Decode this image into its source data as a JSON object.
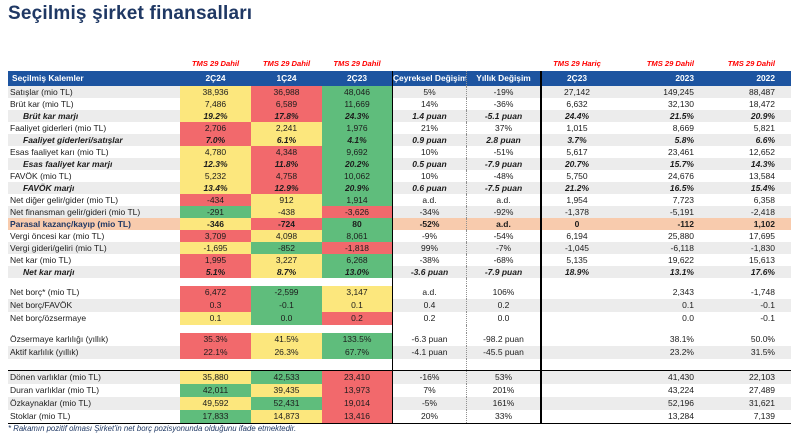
{
  "title": "Seçilmiş şirket finansalları",
  "footnote": "* Rakamın pozitif olması Şirket'in net borç pozisyonunda olduğunu ifade etmektedir.",
  "colors": {
    "header_blue": "#1D54A0",
    "title_navy": "#1F3864",
    "cell_red": "#F2696C",
    "cell_yellow": "#FCE77D",
    "cell_green": "#5FBD7C",
    "row_orange": "#F8CBAD",
    "stripe_gray": "#ECECEC",
    "tms_red": "#FF0000"
  },
  "table": {
    "tms_labels": {
      "c1": "TMS 29 Dahil",
      "c2": "TMS 29 Dahil",
      "c3": "TMS 29 Dahil",
      "h": "TMS 29 Hariç",
      "a": "TMS 29 Dahil",
      "b": "TMS 29 Dahil"
    },
    "headers": {
      "label": "Seçilmiş Kalemler",
      "c1": "2Ç24",
      "c2": "1Ç24",
      "c3": "2Ç23",
      "q": "Çeyreksel Değişim",
      "y": "Yıllık Değişim",
      "h": "2Ç23",
      "a": "2023",
      "b": "2022"
    },
    "rows": [
      {
        "t": "r",
        "label": "Satışlar (mio TL)",
        "style": "normal",
        "stripe": "g",
        "c": [
          [
            "38,936",
            "y"
          ],
          [
            "36,988",
            "r"
          ],
          [
            "48,046",
            "g"
          ]
        ],
        "q": "5%",
        "y": "-19%",
        "h": "27,142",
        "a": "149,245",
        "b": "88,487"
      },
      {
        "t": "r",
        "label": "Brüt kar (mio TL)",
        "style": "normal",
        "stripe": "w",
        "c": [
          [
            "7,486",
            "y"
          ],
          [
            "6,589",
            "r"
          ],
          [
            "11,669",
            "g"
          ]
        ],
        "q": "14%",
        "y": "-36%",
        "h": "6,632",
        "a": "32,130",
        "b": "18,472"
      },
      {
        "t": "r",
        "label": "Brüt kar marjı",
        "style": "margin",
        "stripe": "g",
        "c": [
          [
            "19.2%",
            "y"
          ],
          [
            "17.8%",
            "r"
          ],
          [
            "24.3%",
            "g"
          ]
        ],
        "q": "1.4 puan",
        "y": "-5.1 puan",
        "h": "24.4%",
        "a": "21.5%",
        "b": "20.9%"
      },
      {
        "t": "r",
        "label": "Faaliyet giderleri (mio TL)",
        "style": "normal",
        "stripe": "w",
        "c": [
          [
            "2,706",
            "r"
          ],
          [
            "2,241",
            "y"
          ],
          [
            "1,976",
            "g"
          ]
        ],
        "q": "21%",
        "y": "37%",
        "h": "1,015",
        "a": "8,669",
        "b": "5,821"
      },
      {
        "t": "r",
        "label": "Faaliyet giderleri/satışlar",
        "style": "margin",
        "stripe": "g",
        "c": [
          [
            "7.0%",
            "r"
          ],
          [
            "6.1%",
            "y"
          ],
          [
            "4.1%",
            "g"
          ]
        ],
        "q": "0.9 puan",
        "y": "2.8 puan",
        "h": "3.7%",
        "a": "5.8%",
        "b": "6.6%"
      },
      {
        "t": "r",
        "label": "Esas faaliyet karı (mio TL)",
        "style": "normal",
        "stripe": "w",
        "c": [
          [
            "4,780",
            "y"
          ],
          [
            "4,348",
            "r"
          ],
          [
            "9,692",
            "g"
          ]
        ],
        "q": "10%",
        "y": "-51%",
        "h": "5,617",
        "a": "23,461",
        "b": "12,652"
      },
      {
        "t": "r",
        "label": "Esas faaliyet kar marjı",
        "style": "margin",
        "stripe": "g",
        "c": [
          [
            "12.3%",
            "y"
          ],
          [
            "11.8%",
            "r"
          ],
          [
            "20.2%",
            "g"
          ]
        ],
        "q": "0.5 puan",
        "y": "-7.9 puan",
        "h": "20.7%",
        "a": "15.7%",
        "b": "14.3%"
      },
      {
        "t": "r",
        "label": "FAVÖK (mio TL)",
        "style": "normal",
        "stripe": "w",
        "c": [
          [
            "5,232",
            "y"
          ],
          [
            "4,758",
            "r"
          ],
          [
            "10,062",
            "g"
          ]
        ],
        "q": "10%",
        "y": "-48%",
        "h": "5,750",
        "a": "24,676",
        "b": "13,584"
      },
      {
        "t": "r",
        "label": "FAVÖK marjı",
        "style": "margin",
        "stripe": "g",
        "c": [
          [
            "13.4%",
            "y"
          ],
          [
            "12.9%",
            "r"
          ],
          [
            "20.9%",
            "g"
          ]
        ],
        "q": "0.6 puan",
        "y": "-7.5 puan",
        "h": "21.2%",
        "a": "16.5%",
        "b": "15.4%"
      },
      {
        "t": "r",
        "label": "Net diğer gelir/gider (mio TL)",
        "style": "normal",
        "stripe": "w",
        "c": [
          [
            "-434",
            "r"
          ],
          [
            "912",
            "y"
          ],
          [
            "1,914",
            "g"
          ]
        ],
        "q": "a.d.",
        "y": "a.d.",
        "h": "1,954",
        "a": "7,723",
        "b": "6,358"
      },
      {
        "t": "r",
        "label": "Net finansman gelir/gideri (mio TL)",
        "style": "normal",
        "stripe": "g",
        "c": [
          [
            "-291",
            "g"
          ],
          [
            "-438",
            "y"
          ],
          [
            "-3,626",
            "r"
          ]
        ],
        "q": "-34%",
        "y": "-92%",
        "h": "-1,378",
        "a": "-5,191",
        "b": "-2,418"
      },
      {
        "t": "r",
        "label": "Parasal kazanç/kayıp (mio TL)",
        "style": "bold",
        "stripe": "o",
        "c": [
          [
            "-346",
            "y"
          ],
          [
            "-724",
            "r"
          ],
          [
            "80",
            "g"
          ]
        ],
        "q": "-52%",
        "y": "a.d.",
        "h": "0",
        "a": "-112",
        "b": "1,102"
      },
      {
        "t": "r",
        "label": "Vergi öncesi kar (mio TL)",
        "style": "normal",
        "stripe": "w",
        "c": [
          [
            "3,709",
            "r"
          ],
          [
            "4,098",
            "y"
          ],
          [
            "8,061",
            "g"
          ]
        ],
        "q": "-9%",
        "y": "-54%",
        "h": "6,194",
        "a": "25,880",
        "b": "17,695"
      },
      {
        "t": "r",
        "label": "Vergi gideri/geliri (mio TL)",
        "style": "normal",
        "stripe": "g",
        "c": [
          [
            "-1,695",
            "y"
          ],
          [
            "-852",
            "g"
          ],
          [
            "-1,818",
            "r"
          ]
        ],
        "q": "99%",
        "y": "-7%",
        "h": "-1,045",
        "a": "-6,118",
        "b": "-1,830"
      },
      {
        "t": "r",
        "label": "Net kar (mio TL)",
        "style": "normal",
        "stripe": "w",
        "c": [
          [
            "1,995",
            "r"
          ],
          [
            "3,227",
            "y"
          ],
          [
            "6,268",
            "g"
          ]
        ],
        "q": "-38%",
        "y": "-68%",
        "h": "5,135",
        "a": "19,622",
        "b": "15,613"
      },
      {
        "t": "r",
        "label": "Net kar marjı",
        "style": "margin",
        "stripe": "g",
        "c": [
          [
            "5.1%",
            "r"
          ],
          [
            "8.7%",
            "y"
          ],
          [
            "13.0%",
            "g"
          ]
        ],
        "q": "-3.6 puan",
        "y": "-7.9 puan",
        "h": "18.9%",
        "a": "13.1%",
        "b": "17.6%"
      },
      {
        "t": "s"
      },
      {
        "t": "r",
        "tall": true,
        "label": "Net borç* (mio TL)",
        "style": "normal",
        "stripe": "w",
        "c": [
          [
            "6,472",
            "r"
          ],
          [
            "-2,599",
            "g"
          ],
          [
            "3,147",
            "y"
          ]
        ],
        "q": "a.d.",
        "y": "106%",
        "h": "",
        "a": "2,343",
        "b": "-1,748"
      },
      {
        "t": "r",
        "tall": true,
        "label": "Net borç/FAVÖK",
        "style": "normal",
        "stripe": "g",
        "c": [
          [
            "0.3",
            "r"
          ],
          [
            "-0.1",
            "g"
          ],
          [
            "0.1",
            "y"
          ]
        ],
        "q": "0.4",
        "y": "0.2",
        "h": "",
        "a": "0.1",
        "b": "-0.1"
      },
      {
        "t": "r",
        "tall": true,
        "label": "Net borç/özsermaye",
        "style": "normal",
        "stripe": "w",
        "c": [
          [
            "0.1",
            "y"
          ],
          [
            "0.0",
            "g"
          ],
          [
            "0.2",
            "r"
          ]
        ],
        "q": "0.2",
        "y": "0.0",
        "h": "",
        "a": "0.0",
        "b": "-0.1"
      },
      {
        "t": "s"
      },
      {
        "t": "r",
        "tall": true,
        "label": "Özsermaye karlılığı (yıllık)",
        "style": "normal",
        "stripe": "w",
        "c": [
          [
            "35.3%",
            "r"
          ],
          [
            "41.5%",
            "y"
          ],
          [
            "133.5%",
            "g"
          ]
        ],
        "q": "-6.3 puan",
        "y": "-98.2 puan",
        "h": "",
        "a": "38.1%",
        "b": "50.0%"
      },
      {
        "t": "r",
        "tall": true,
        "label": "Aktif karlılık (yıllık)",
        "style": "normal",
        "stripe": "g",
        "c": [
          [
            "22.1%",
            "r"
          ],
          [
            "26.3%",
            "y"
          ],
          [
            "67.7%",
            "g"
          ]
        ],
        "q": "-4.1 puan",
        "y": "-45.5 puan",
        "h": "",
        "a": "23.2%",
        "b": "31.5%"
      },
      {
        "t": "s",
        "tall": true
      },
      {
        "t": "r",
        "tall": true,
        "lineTop": true,
        "label": "Dönen varlıklar (mio TL)",
        "style": "normal",
        "stripe": "g",
        "c": [
          [
            "35,880",
            "y"
          ],
          [
            "42,533",
            "g"
          ],
          [
            "23,410",
            "r"
          ]
        ],
        "q": "-16%",
        "y": "53%",
        "h": "",
        "a": "41,430",
        "b": "22,103"
      },
      {
        "t": "r",
        "tall": true,
        "label": "Duran varlıklar (mio TL)",
        "style": "normal",
        "stripe": "w",
        "c": [
          [
            "42,011",
            "g"
          ],
          [
            "39,435",
            "y"
          ],
          [
            "13,973",
            "r"
          ]
        ],
        "q": "7%",
        "y": "201%",
        "h": "",
        "a": "43,224",
        "b": "27,489"
      },
      {
        "t": "r",
        "tall": true,
        "label": "Özkaynaklar (mio TL)",
        "style": "normal",
        "stripe": "g",
        "c": [
          [
            "49,592",
            "y"
          ],
          [
            "52,431",
            "g"
          ],
          [
            "19,014",
            "r"
          ]
        ],
        "q": "-5%",
        "y": "161%",
        "h": "",
        "a": "52,196",
        "b": "31,621"
      },
      {
        "t": "r",
        "tall": true,
        "label": "Stoklar (mio TL)",
        "style": "normal",
        "stripe": "w",
        "c": [
          [
            "17,833",
            "g"
          ],
          [
            "14,873",
            "y"
          ],
          [
            "13,416",
            "r"
          ]
        ],
        "q": "20%",
        "y": "33%",
        "h": "",
        "a": "13,284",
        "b": "7,139"
      }
    ]
  }
}
